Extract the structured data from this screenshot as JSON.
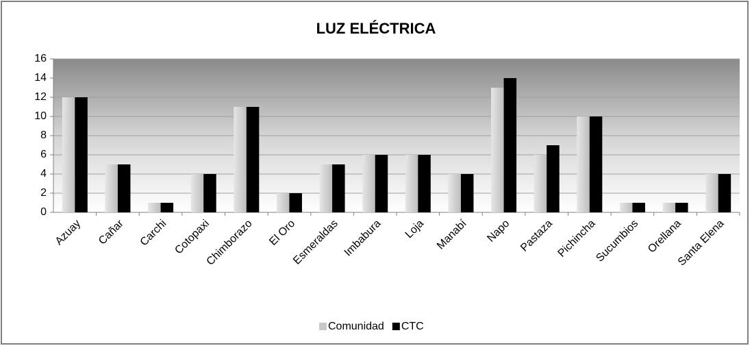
{
  "chart_data": {
    "type": "bar",
    "title": "LUZ ELÉCTRICA",
    "categories": [
      "Azuay",
      "Cañar",
      "Carchi",
      "Cotopaxi",
      "Chimborazo",
      "El Oro",
      "Esmeraldas",
      "Imbabura",
      "Loja",
      "Manabí",
      "Napo",
      "Pastaza",
      "Pichincha",
      "Sucumbios",
      "Orellana",
      "Santa Elena"
    ],
    "series": [
      {
        "name": "Comunidad",
        "color": "#c8c8c8",
        "values": [
          12,
          5,
          1,
          4,
          11,
          2,
          5,
          6,
          6,
          4,
          13,
          6,
          10,
          1,
          1,
          4
        ]
      },
      {
        "name": "CTC",
        "color": "#000000",
        "values": [
          12,
          5,
          1,
          4,
          11,
          2,
          5,
          6,
          6,
          4,
          14,
          7,
          10,
          1,
          1,
          4
        ]
      }
    ],
    "ylim": [
      0,
      16
    ],
    "yticks": [
      0,
      2,
      4,
      6,
      8,
      10,
      12,
      14,
      16
    ],
    "grid": true,
    "legend": "bottom"
  }
}
